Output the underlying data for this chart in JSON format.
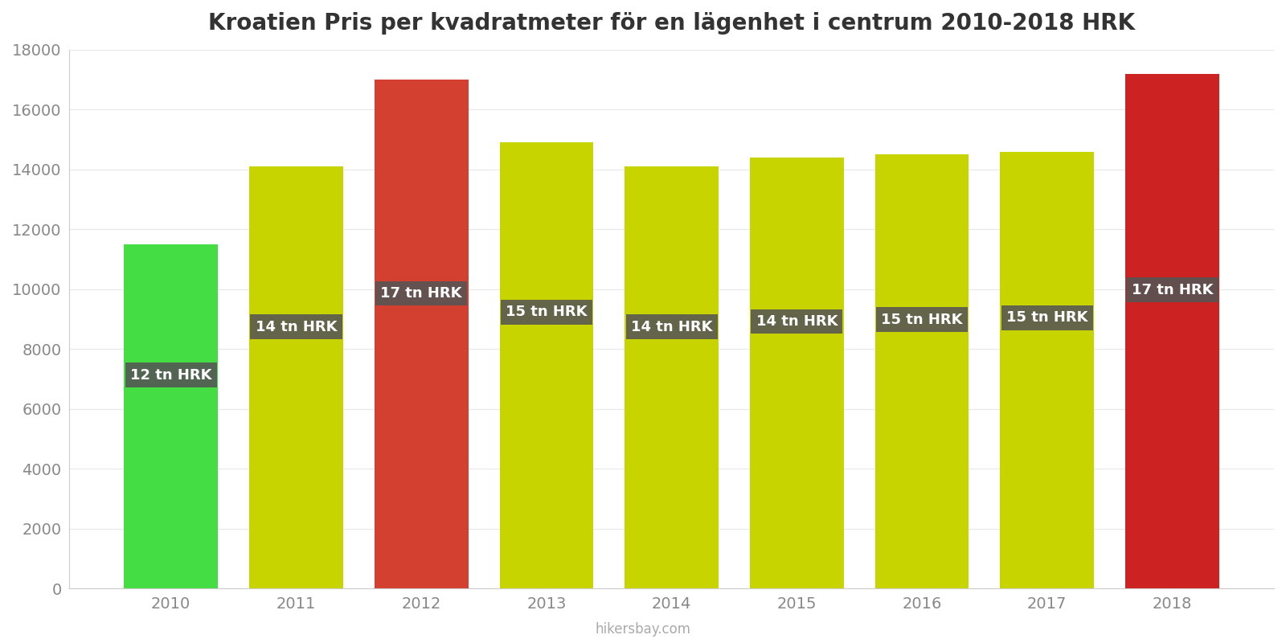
{
  "title": "Kroatien Pris per kvadratmeter för en lägenhet i centrum 2010-2018 HRK",
  "years": [
    2010,
    2011,
    2012,
    2013,
    2014,
    2015,
    2016,
    2017,
    2018
  ],
  "values": [
    11500,
    14100,
    17000,
    14900,
    14100,
    14400,
    14500,
    14600,
    17200
  ],
  "bar_colors": [
    "#44dd44",
    "#c8d400",
    "#d44030",
    "#c8d400",
    "#c8d400",
    "#c8d400",
    "#c8d400",
    "#c8d400",
    "#cc2222"
  ],
  "labels": [
    "12 tn HRK",
    "14 tn HRK",
    "17 tn HRK",
    "15 tn HRK",
    "14 tn HRK",
    "14 tn HRK",
    "15 tn HRK",
    "15 tn HRK",
    "17 tn HRK"
  ],
  "label_y_fractions": [
    0.62,
    0.62,
    0.58,
    0.62,
    0.62,
    0.62,
    0.62,
    0.62,
    0.58
  ],
  "ylim": [
    0,
    18000
  ],
  "yticks": [
    0,
    2000,
    4000,
    6000,
    8000,
    10000,
    12000,
    14000,
    16000,
    18000
  ],
  "background_color": "#ffffff",
  "watermark": "hikersbay.com",
  "title_fontsize": 20,
  "label_fontsize": 13,
  "tick_fontsize": 14,
  "label_box_color": "#555555",
  "label_text_color": "#ffffff",
  "bar_width": 0.75
}
